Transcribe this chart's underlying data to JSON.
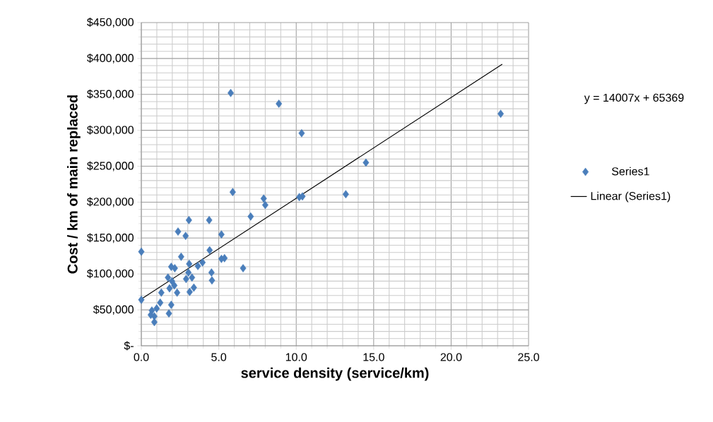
{
  "chart_data": {
    "type": "scatter",
    "xlabel": "service density (service/km)",
    "ylabel": "Cost / km of main replaced",
    "xlim": [
      0,
      25
    ],
    "ylim": [
      0,
      450000
    ],
    "xticks": [
      {
        "value": 0,
        "label": "0.0"
      },
      {
        "value": 5,
        "label": "5.0"
      },
      {
        "value": 10,
        "label": "10.0"
      },
      {
        "value": 15,
        "label": "15.0"
      },
      {
        "value": 20,
        "label": "20.0"
      },
      {
        "value": 25,
        "label": "25.0"
      }
    ],
    "yticks": [
      {
        "value": 0,
        "label": "$-"
      },
      {
        "value": 50000,
        "label": "$50,000"
      },
      {
        "value": 100000,
        "label": "$100,000"
      },
      {
        "value": 150000,
        "label": "$150,000"
      },
      {
        "value": 200000,
        "label": "$200,000"
      },
      {
        "value": 250000,
        "label": "$250,000"
      },
      {
        "value": 300000,
        "label": "$300,000"
      },
      {
        "value": 350000,
        "label": "$350,000"
      },
      {
        "value": 400000,
        "label": "$400,000"
      },
      {
        "value": 450000,
        "label": "$450,000"
      }
    ],
    "grid": true,
    "legend": "right",
    "annotations": [
      "y = 14007x + 65369"
    ],
    "series": [
      {
        "name": "Series1",
        "color": "#4a7ebb",
        "marker": "diamond",
        "x": [
          0,
          0,
          5.77,
          8.88,
          10.35,
          23.2,
          14.5,
          5.9,
          7.9,
          8.0,
          10.2,
          10.4,
          13.2,
          3.07,
          4.38,
          2.37,
          2.86,
          5.17,
          7.06,
          4.41,
          2.57,
          5.17,
          5.37,
          6.57,
          3.09,
          3.65,
          3.95,
          1.93,
          2.16,
          4.53,
          4.56,
          1.72,
          1.98,
          2.89,
          3.27,
          3.04,
          2.13,
          1.82,
          1.29,
          2.31,
          3.12,
          3.39,
          1.22,
          1.93,
          0.68,
          0.99,
          0.84,
          0.61,
          0.84,
          1.78
        ],
        "values": [
          131000,
          64000,
          352000,
          337000,
          296000,
          323000,
          255000,
          214000,
          205000,
          196000,
          207000,
          208000,
          211000,
          175000,
          175000,
          159000,
          153000,
          155000,
          180000,
          133000,
          124000,
          121000,
          122000,
          108000,
          114000,
          111000,
          116000,
          110000,
          108000,
          102000,
          91000,
          95000,
          90000,
          93000,
          95000,
          102000,
          84000,
          80000,
          74000,
          74000,
          75000,
          81000,
          60000,
          57000,
          49000,
          52000,
          41000,
          43000,
          33000,
          45000
        ]
      },
      {
        "name": "Linear (Series1)",
        "type": "line",
        "color": "#000000",
        "marker": "none",
        "line_style": "solid",
        "x": [
          0,
          23.3
        ],
        "values": [
          65000,
          392000
        ]
      }
    ]
  }
}
